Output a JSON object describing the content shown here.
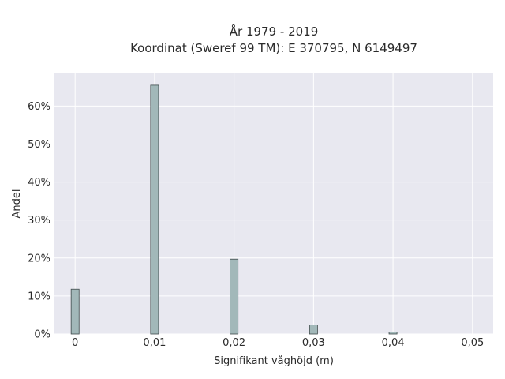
{
  "chart_data": {
    "type": "bar",
    "title_line1": "År 1979 - 2019",
    "title_line2": "Koordinat (Sweref 99 TM): E 370795, N 6149497",
    "xlabel": "Signifikant våghöjd (m)",
    "ylabel": "Andel",
    "x": [
      0,
      0.01,
      0.02,
      0.03,
      0.04
    ],
    "values": [
      11.8,
      65.5,
      19.7,
      2.4,
      0.5
    ],
    "xlim": [
      -0.0026,
      0.0526
    ],
    "ylim": [
      0,
      68.6
    ],
    "x_ticks": [
      0,
      0.01,
      0.02,
      0.03,
      0.04,
      0.05
    ],
    "x_tick_labels": [
      "0",
      "0,01",
      "0,02",
      "0,03",
      "0,04",
      "0,05"
    ],
    "y_ticks": [
      0,
      10,
      20,
      30,
      40,
      50,
      60
    ],
    "y_tick_labels": [
      "0%",
      "10%",
      "20%",
      "30%",
      "40%",
      "50%",
      "60%"
    ],
    "bar_color": "#a2b8b9",
    "bar_edge_color": "#3f4a4b",
    "plot_background": "#e8e8f0",
    "grid_color": "#ffffff",
    "grid": true
  }
}
